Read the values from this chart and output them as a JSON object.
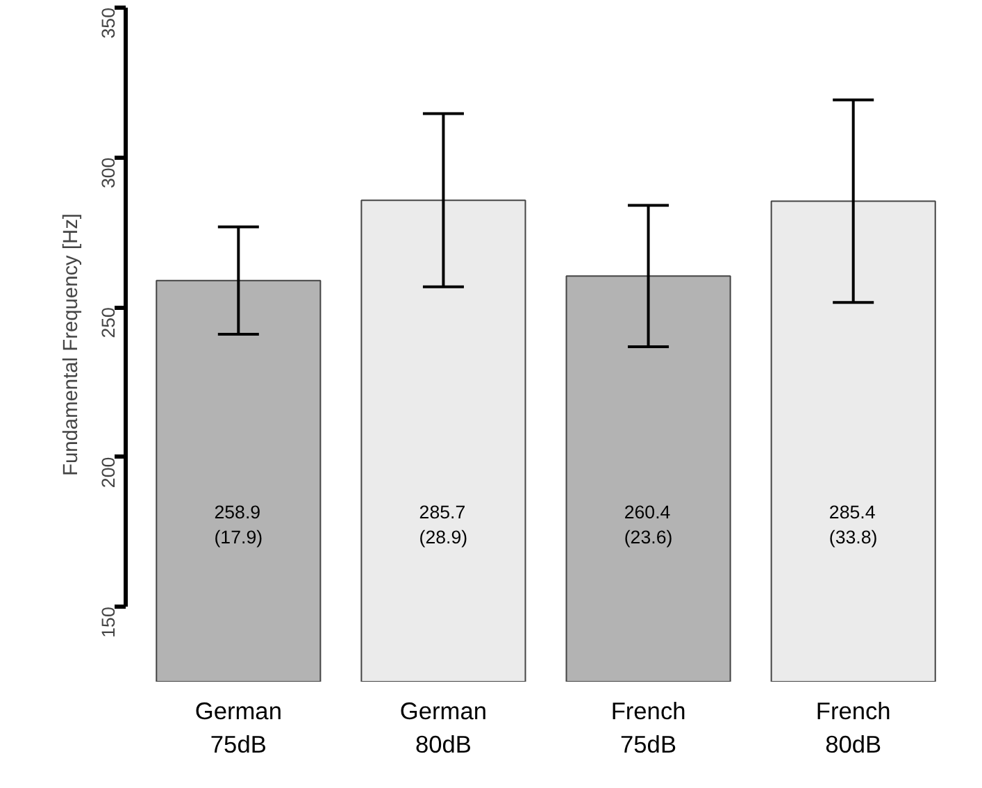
{
  "chart_data": {
    "type": "bar",
    "ylabel": "Fundamental Frequency [Hz]",
    "categories": [
      "German\n75dB",
      "German\n80dB",
      "French\n75dB",
      "French\n80dB"
    ],
    "values": [
      258.9,
      285.7,
      260.4,
      285.4
    ],
    "errors": [
      17.9,
      28.9,
      23.6,
      33.8
    ],
    "value_labels": [
      "258.9\n(17.9)",
      "285.7\n(28.9)",
      "260.4\n(23.6)",
      "285.4\n(33.8)"
    ],
    "colors": [
      "#b3b3b3",
      "#ebebeb",
      "#b3b3b3",
      "#ebebeb"
    ],
    "ylim": [
      125,
      350
    ],
    "yticks": [
      150,
      200,
      250,
      300,
      350
    ],
    "grid": false
  }
}
